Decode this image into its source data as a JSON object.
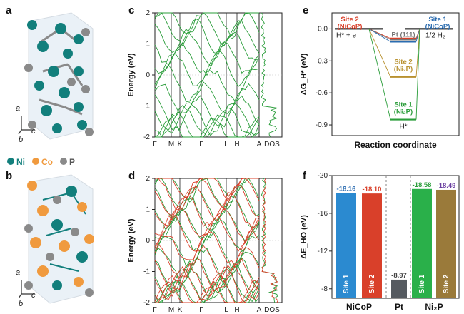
{
  "panel_labels": {
    "a": "a",
    "b": "b",
    "c": "c",
    "d": "d",
    "e": "e",
    "f": "f"
  },
  "legend": {
    "ni": "Ni",
    "co": "Co",
    "p": "P"
  },
  "axes_glyphs": {
    "a": "a",
    "b": "b",
    "c": "c"
  },
  "colors": {
    "ni": "#127f7c",
    "co": "#f09a3e",
    "p": "#8a8a8a",
    "green": "#2a9d3a",
    "red": "#d9402a",
    "blue": "#2b6cb0",
    "gold": "#b8912f",
    "purple": "#6b3fa0"
  },
  "band_c": {
    "ylabel": "Energy (eV)",
    "yticks": [
      "2",
      "1",
      "0",
      "-1",
      "-2"
    ],
    "ytick_values": [
      2,
      1,
      0,
      -1,
      -2
    ],
    "xticks": [
      "Γ",
      "M",
      "K",
      "Γ",
      "L",
      "H",
      "A"
    ],
    "dos_label": "DOS"
  },
  "band_d": {
    "ylabel": "Energy (eV)",
    "yticks": [
      "2",
      "1",
      "0",
      "-1",
      "-2"
    ],
    "ytick_values": [
      2,
      1,
      0,
      -1,
      -2
    ],
    "xticks": [
      "Γ",
      "M",
      "K",
      "Γ",
      "L",
      "H",
      "A"
    ],
    "dos_label": "DOS"
  },
  "chart_data": [
    {
      "type": "line",
      "panel": "e",
      "title": "",
      "xlabel": "Reaction coordinate",
      "ylabel": "ΔG_H* (eV)",
      "ylim": [
        -1.0,
        0.15
      ],
      "yticks": [
        "0.0",
        "-0.3",
        "-0.6",
        "-0.9"
      ],
      "ytick_values": [
        0.0,
        -0.3,
        -0.6,
        -0.9
      ],
      "left_state": "H* + e",
      "right_state": "1/2 H₂",
      "mid_state": "H*",
      "series": [
        {
          "name": "Site 2 (NiCoP)",
          "label_lines": [
            "Site 2",
            "(NiCoP)"
          ],
          "value": -0.09,
          "color": "#d9402a"
        },
        {
          "name": "Site 1 (NiCoP)",
          "label_lines": [
            "Site 1",
            "(NiCoP)"
          ],
          "value": -0.12,
          "color": "#2b6cb0"
        },
        {
          "name": "Pt (111)",
          "label_lines": [
            "Pt (111)"
          ],
          "value": -0.1,
          "color": "#777777"
        },
        {
          "name": "Site 2 (Ni2P)",
          "label_lines": [
            "Site 2",
            "(Ni₂P)"
          ],
          "value": -0.45,
          "color": "#b8912f"
        },
        {
          "name": "Site 1 (Ni2P)",
          "label_lines": [
            "Site 1",
            "(Ni₂P)"
          ],
          "value": -0.85,
          "color": "#2a9d3a"
        }
      ]
    },
    {
      "type": "bar",
      "panel": "f",
      "ylabel": "ΔE_HO (eV)",
      "ylim": [
        -7,
        -20
      ],
      "yticks": [
        "-20",
        "-16",
        "-12",
        "-8"
      ],
      "ytick_values": [
        -20,
        -16,
        -12,
        -8
      ],
      "categories": [
        "Site 1",
        "Site 2",
        "Pt",
        "Site 1",
        "Site 2"
      ],
      "groups": [
        "NiCoP",
        "Pt",
        "Ni₂P"
      ],
      "values": [
        -18.16,
        -18.1,
        -8.97,
        -18.58,
        -18.49
      ],
      "value_labels": [
        "-18.16",
        "-18.10",
        "-8.97",
        "-18.58",
        "-18.49"
      ],
      "colors": [
        "#2b8ad0",
        "#d9402a",
        "#555a60",
        "#2ab04a",
        "#9a7a3a"
      ],
      "label_colors": [
        "#2b6cb0",
        "#d9402a",
        "#444444",
        "#2a9d3a",
        "#6b3fa0"
      ]
    }
  ]
}
